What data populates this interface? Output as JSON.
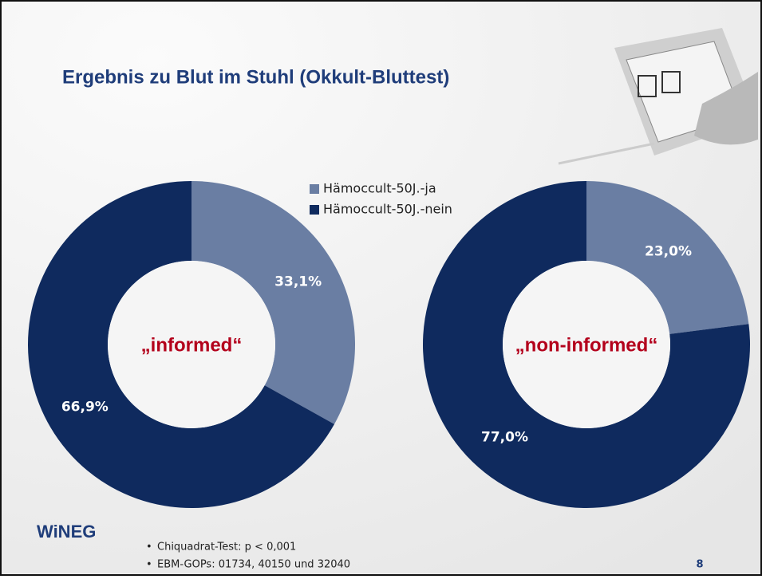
{
  "header": {
    "title": "Ergebnis zu Blut im Stuhl (Okkult-Bluttest)",
    "logo": "WiNEG"
  },
  "chart_data": [
    {
      "type": "pie",
      "categories": [
        "Hämoccult-50J.-ja",
        "Hämoccult-50J.-nein"
      ],
      "values": [
        33.1,
        66.9
      ],
      "value_labels": [
        "33,1%",
        "66,9%"
      ],
      "colors": [
        "#6a7ea3",
        "#0f2a5e"
      ],
      "center_label": "„informed“"
    },
    {
      "type": "pie",
      "values": [
        23.0,
        77.0
      ],
      "value_labels": [
        "23,0%",
        "77,0%"
      ],
      "colors": [
        "#6a7ea3",
        "#0f2a5e"
      ],
      "center_label": "„non-informed“"
    }
  ],
  "notes": [
    "Chiquadrat-Test: p < 0,001",
    "EBM-GOPs: 01734, 40150 und 32040"
  ],
  "page_number": "8"
}
